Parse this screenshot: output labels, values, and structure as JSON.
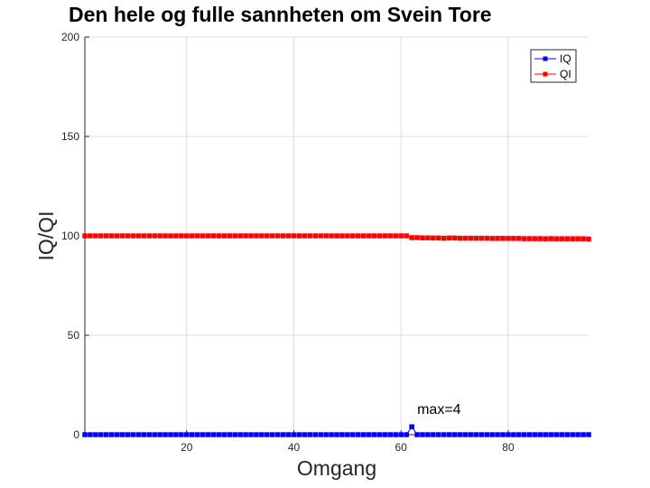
{
  "chart_data": {
    "type": "line",
    "title": "Den hele og fulle sannheten om Svein Tore",
    "xlabel": "Omgang",
    "ylabel": "IQ/QI",
    "xlim": [
      1,
      95
    ],
    "ylim": [
      0,
      200
    ],
    "xticks": [
      20,
      40,
      60,
      80
    ],
    "yticks": [
      0,
      50,
      100,
      150,
      200
    ],
    "grid": true,
    "legend_position": "top-right",
    "series": [
      {
        "name": "IQ",
        "color": "#0000ff",
        "marker": "square",
        "x": [
          1,
          2,
          3,
          4,
          5,
          6,
          7,
          8,
          9,
          10,
          11,
          12,
          13,
          14,
          15,
          16,
          17,
          18,
          19,
          20,
          21,
          22,
          23,
          24,
          25,
          26,
          27,
          28,
          29,
          30,
          31,
          32,
          33,
          34,
          35,
          36,
          37,
          38,
          39,
          40,
          41,
          42,
          43,
          44,
          45,
          46,
          47,
          48,
          49,
          50,
          51,
          52,
          53,
          54,
          55,
          56,
          57,
          58,
          59,
          60,
          61,
          62,
          63,
          64,
          65,
          66,
          67,
          68,
          69,
          70,
          71,
          72,
          73,
          74,
          75,
          76,
          77,
          78,
          79,
          80,
          81,
          82,
          83,
          84,
          85,
          86,
          87,
          88,
          89,
          90,
          91,
          92,
          93,
          94,
          95
        ],
        "y": [
          0,
          0,
          0,
          0,
          0,
          0,
          0,
          0,
          0,
          0,
          0,
          0,
          0,
          0,
          0,
          0,
          0,
          0,
          0,
          0,
          0,
          0,
          0,
          0,
          0,
          0,
          0,
          0,
          0,
          0,
          0,
          0,
          0,
          0,
          0,
          0,
          0,
          0,
          0,
          0,
          0,
          0,
          0,
          0,
          0,
          0,
          0,
          0,
          0,
          0,
          0,
          0,
          0,
          0,
          0,
          0,
          0,
          0,
          0,
          0,
          0,
          4,
          0,
          0,
          0,
          0,
          0,
          0,
          0,
          0,
          0,
          0,
          0,
          0,
          0,
          0,
          0,
          0,
          0,
          0,
          0,
          0,
          0,
          0,
          0,
          0,
          0,
          0,
          0,
          0,
          0,
          0,
          0,
          0,
          0
        ]
      },
      {
        "name": "QI",
        "color": "#ff0000",
        "marker": "square",
        "x": [
          1,
          2,
          3,
          4,
          5,
          6,
          7,
          8,
          9,
          10,
          11,
          12,
          13,
          14,
          15,
          16,
          17,
          18,
          19,
          20,
          21,
          22,
          23,
          24,
          25,
          26,
          27,
          28,
          29,
          30,
          31,
          32,
          33,
          34,
          35,
          36,
          37,
          38,
          39,
          40,
          41,
          42,
          43,
          44,
          45,
          46,
          47,
          48,
          49,
          50,
          51,
          52,
          53,
          54,
          55,
          56,
          57,
          58,
          59,
          60,
          61,
          62,
          63,
          64,
          65,
          66,
          67,
          68,
          69,
          70,
          71,
          72,
          73,
          74,
          75,
          76,
          77,
          78,
          79,
          80,
          81,
          82,
          83,
          84,
          85,
          86,
          87,
          88,
          89,
          90,
          91,
          92,
          93,
          94,
          95
        ],
        "y": [
          100,
          100,
          100,
          100,
          100,
          100,
          100,
          100,
          100,
          100,
          100,
          100,
          100,
          100,
          100,
          100,
          100,
          100,
          100,
          100,
          100,
          100,
          100,
          100,
          100,
          100,
          100,
          100,
          100,
          100,
          100,
          100,
          100,
          100,
          100,
          100,
          100,
          100,
          100,
          100,
          100,
          100,
          100,
          100,
          100,
          100,
          100,
          100,
          100,
          100,
          100,
          100,
          100,
          100,
          100,
          100,
          100,
          100,
          100,
          100,
          100,
          99.1,
          99.1,
          99.0,
          99.0,
          98.9,
          98.9,
          98.8,
          98.9,
          98.9,
          98.8,
          98.8,
          98.8,
          98.8,
          98.8,
          98.8,
          98.7,
          98.7,
          98.7,
          98.7,
          98.7,
          98.7,
          98.6,
          98.6,
          98.6,
          98.6,
          98.5,
          98.6,
          98.5,
          98.5,
          98.5,
          98.5,
          98.5,
          98.5,
          98.4
        ]
      }
    ],
    "annotations": [
      {
        "text": "max=4",
        "x": 62,
        "y": 4
      }
    ]
  }
}
